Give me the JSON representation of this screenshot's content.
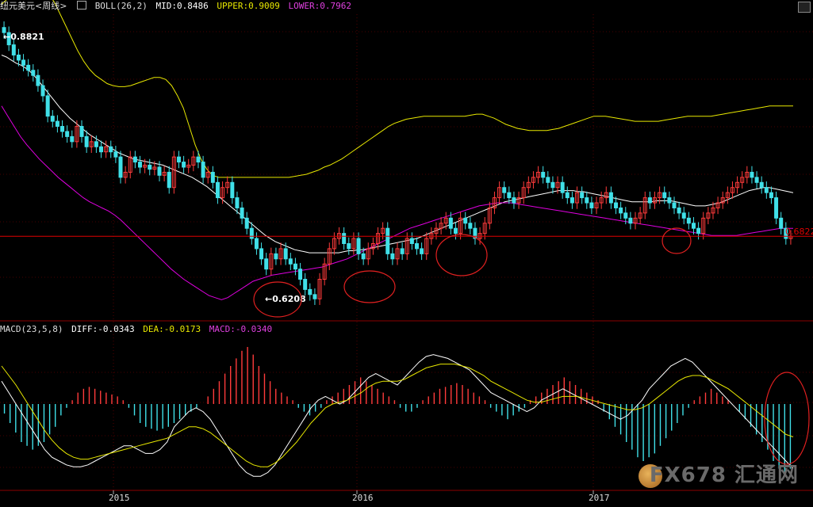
{
  "header": {
    "symbol": "纽元美元",
    "period": "<周线>",
    "indicator": "BOLL(26,2)",
    "mid": "MID:0.8486",
    "upper": "UPPER:0.9009",
    "lower": "LOWER:0.7962"
  },
  "macd_header": {
    "name": "MACD(23,5,8)",
    "diff": "DIFF:-0.0343",
    "dea": "DEA:-0.0173",
    "macd": "MACD:-0.0340"
  },
  "watermark": "FX678 汇通网",
  "colors": {
    "background": "#000000",
    "up_candle": "#ff3b3b",
    "down_candle": "#40e0e8",
    "mid_line": "#ffffff",
    "upper_band": "#e8e800",
    "lower_band": "#e000e0",
    "support_line": "#e00000",
    "annotation": "#e02020",
    "grid": "#8b0000"
  },
  "chart_data": [
    {
      "type": "candlestick",
      "title": "纽元美元 周线 BOLL(26,2)",
      "x_ticks": [
        "2015",
        "2016",
        "2017"
      ],
      "ylim": [
        0.6,
        0.9
      ],
      "annotations": [
        "0.8821",
        "0.6208",
        "0.6822"
      ],
      "support_level": 0.6822,
      "closes": [
        0.882,
        0.87,
        0.86,
        0.855,
        0.85,
        0.845,
        0.84,
        0.83,
        0.82,
        0.8,
        0.795,
        0.79,
        0.785,
        0.78,
        0.775,
        0.79,
        0.78,
        0.77,
        0.775,
        0.77,
        0.765,
        0.77,
        0.765,
        0.76,
        0.74,
        0.745,
        0.76,
        0.755,
        0.75,
        0.752,
        0.748,
        0.75,
        0.742,
        0.745,
        0.73,
        0.76,
        0.755,
        0.75,
        0.752,
        0.76,
        0.755,
        0.74,
        0.745,
        0.735,
        0.72,
        0.73,
        0.735,
        0.72,
        0.71,
        0.7,
        0.69,
        0.68,
        0.67,
        0.66,
        0.65,
        0.665,
        0.66,
        0.67,
        0.66,
        0.655,
        0.65,
        0.64,
        0.63,
        0.625,
        0.6208,
        0.64,
        0.655,
        0.67,
        0.68,
        0.685,
        0.675,
        0.67,
        0.68,
        0.665,
        0.66,
        0.67,
        0.675,
        0.685,
        0.69,
        0.665,
        0.66,
        0.67,
        0.665,
        0.68,
        0.675,
        0.67,
        0.665,
        0.68,
        0.685,
        0.69,
        0.695,
        0.7,
        0.69,
        0.685,
        0.7,
        0.695,
        0.69,
        0.68,
        0.685,
        0.695,
        0.71,
        0.72,
        0.73,
        0.725,
        0.72,
        0.715,
        0.72,
        0.73,
        0.735,
        0.74,
        0.745,
        0.74,
        0.735,
        0.73,
        0.735,
        0.725,
        0.72,
        0.715,
        0.725,
        0.72,
        0.715,
        0.71,
        0.715,
        0.72,
        0.725,
        0.715,
        0.71,
        0.705,
        0.7,
        0.695,
        0.7,
        0.705,
        0.72,
        0.715,
        0.72,
        0.725,
        0.72,
        0.715,
        0.71,
        0.705,
        0.7,
        0.695,
        0.69,
        0.685,
        0.7,
        0.705,
        0.71,
        0.715,
        0.72,
        0.725,
        0.73,
        0.735,
        0.74,
        0.745,
        0.74,
        0.735,
        0.73,
        0.725,
        0.72,
        0.7,
        0.69,
        0.68,
        0.6822
      ],
      "boll_mid": [
        0.86,
        0.858,
        0.855,
        0.852,
        0.85,
        0.847,
        0.843,
        0.838,
        0.832,
        0.826,
        0.82,
        0.814,
        0.808,
        0.803,
        0.798,
        0.794,
        0.79,
        0.786,
        0.782,
        0.779,
        0.776,
        0.773,
        0.77,
        0.767,
        0.764,
        0.762,
        0.76,
        0.758,
        0.757,
        0.756,
        0.755,
        0.754,
        0.753,
        0.752,
        0.75,
        0.748,
        0.746,
        0.744,
        0.742,
        0.74,
        0.737,
        0.734,
        0.731,
        0.727,
        0.723,
        0.719,
        0.715,
        0.711,
        0.707,
        0.703,
        0.699,
        0.695,
        0.691,
        0.687,
        0.683,
        0.68,
        0.677,
        0.675,
        0.673,
        0.671,
        0.669,
        0.668,
        0.667,
        0.666,
        0.666,
        0.666,
        0.666,
        0.666,
        0.666,
        0.666,
        0.667,
        0.668,
        0.668,
        0.669,
        0.669,
        0.67,
        0.671,
        0.672,
        0.673,
        0.674,
        0.675,
        0.676,
        0.677,
        0.678,
        0.679,
        0.68,
        0.682,
        0.684,
        0.686,
        0.688,
        0.69,
        0.692,
        0.694,
        0.696,
        0.698,
        0.7,
        0.702,
        0.704,
        0.706,
        0.708,
        0.71,
        0.712,
        0.714,
        0.716,
        0.717,
        0.718,
        0.719,
        0.72,
        0.721,
        0.722,
        0.723,
        0.724,
        0.725,
        0.726,
        0.727,
        0.727,
        0.727,
        0.727,
        0.726,
        0.726,
        0.725,
        0.724,
        0.723,
        0.722,
        0.721,
        0.72,
        0.719,
        0.718,
        0.717,
        0.716,
        0.716,
        0.716,
        0.716,
        0.716,
        0.717,
        0.717,
        0.717,
        0.717,
        0.716,
        0.715,
        0.714,
        0.713,
        0.712,
        0.712,
        0.712,
        0.713,
        0.714,
        0.715,
        0.717,
        0.719,
        0.721,
        0.723,
        0.725,
        0.727,
        0.728,
        0.729,
        0.73,
        0.73,
        0.729,
        0.728,
        0.727,
        0.726,
        0.725
      ],
      "boll_upper": [
        0.91,
        0.915,
        0.92,
        0.925,
        0.928,
        0.929,
        0.928,
        0.925,
        0.92,
        0.912,
        0.9,
        0.888,
        0.876,
        0.864,
        0.854,
        0.846,
        0.84,
        0.836,
        0.832,
        0.83,
        0.829,
        0.829,
        0.83,
        0.832,
        0.834,
        0.836,
        0.838,
        0.838,
        0.836,
        0.83,
        0.82,
        0.808,
        0.79,
        0.772,
        0.758,
        0.748,
        0.742,
        0.74,
        0.74,
        0.74,
        0.74,
        0.74,
        0.74,
        0.74,
        0.74,
        0.74,
        0.74,
        0.74,
        0.74,
        0.74,
        0.741,
        0.742,
        0.743,
        0.745,
        0.747,
        0.75,
        0.752,
        0.755,
        0.758,
        0.762,
        0.766,
        0.77,
        0.774,
        0.778,
        0.782,
        0.786,
        0.79,
        0.793,
        0.795,
        0.797,
        0.798,
        0.799,
        0.8,
        0.8,
        0.8,
        0.8,
        0.8,
        0.8,
        0.8,
        0.8,
        0.801,
        0.802,
        0.802,
        0.8,
        0.798,
        0.795,
        0.792,
        0.79,
        0.788,
        0.787,
        0.786,
        0.786,
        0.786,
        0.786,
        0.787,
        0.788,
        0.79,
        0.792,
        0.794,
        0.796,
        0.798,
        0.8,
        0.8,
        0.8,
        0.799,
        0.798,
        0.797,
        0.796,
        0.795,
        0.795,
        0.795,
        0.795,
        0.795,
        0.796,
        0.797,
        0.798,
        0.799,
        0.8,
        0.8,
        0.8,
        0.8,
        0.8,
        0.801,
        0.802,
        0.803,
        0.804,
        0.805,
        0.806,
        0.807,
        0.808,
        0.809,
        0.81,
        0.81,
        0.81,
        0.81,
        0.81
      ],
      "boll_lower": [
        0.81,
        0.8,
        0.79,
        0.78,
        0.772,
        0.765,
        0.758,
        0.752,
        0.746,
        0.74,
        0.735,
        0.73,
        0.725,
        0.72,
        0.716,
        0.713,
        0.71,
        0.707,
        0.703,
        0.698,
        0.692,
        0.686,
        0.68,
        0.674,
        0.668,
        0.662,
        0.656,
        0.65,
        0.645,
        0.64,
        0.636,
        0.632,
        0.628,
        0.624,
        0.622,
        0.62,
        0.622,
        0.626,
        0.63,
        0.634,
        0.638,
        0.64,
        0.642,
        0.644,
        0.645,
        0.646,
        0.647,
        0.648,
        0.649,
        0.65,
        0.651,
        0.652,
        0.654,
        0.656,
        0.658,
        0.66,
        0.663,
        0.666,
        0.669,
        0.672,
        0.675,
        0.678,
        0.681,
        0.684,
        0.687,
        0.69,
        0.692,
        0.694,
        0.696,
        0.698,
        0.7,
        0.702,
        0.704,
        0.706,
        0.708,
        0.71,
        0.712,
        0.713,
        0.714,
        0.715,
        0.715,
        0.715,
        0.714,
        0.713,
        0.712,
        0.711,
        0.71,
        0.709,
        0.708,
        0.707,
        0.706,
        0.705,
        0.704,
        0.703,
        0.702,
        0.701,
        0.7,
        0.699,
        0.698,
        0.697,
        0.696,
        0.695,
        0.694,
        0.693,
        0.692,
        0.691,
        0.69,
        0.689,
        0.688,
        0.687,
        0.686,
        0.685,
        0.684,
        0.683,
        0.683,
        0.683,
        0.683,
        0.683,
        0.684,
        0.685,
        0.686,
        0.687,
        0.688,
        0.689,
        0.69,
        0.69,
        0.69
      ]
    },
    {
      "type": "bar",
      "title": "MACD(23,5,8)",
      "x_ticks": [
        "2015",
        "2016",
        "2017"
      ],
      "ylim": [
        -0.045,
        0.035
      ],
      "macd": [
        -0.005,
        -0.01,
        -0.015,
        -0.02,
        -0.022,
        -0.024,
        -0.022,
        -0.02,
        -0.016,
        -0.012,
        -0.006,
        -0.002,
        0.002,
        0.006,
        0.008,
        0.009,
        0.008,
        0.007,
        0.006,
        0.005,
        0.004,
        0.002,
        -0.002,
        -0.006,
        -0.01,
        -0.012,
        -0.013,
        -0.014,
        -0.013,
        -0.012,
        -0.01,
        -0.008,
        -0.006,
        -0.004,
        -0.002,
        0,
        0.004,
        0.008,
        0.012,
        0.016,
        0.02,
        0.024,
        0.028,
        0.03,
        0.026,
        0.02,
        0.016,
        0.012,
        0.008,
        0.006,
        0.004,
        0.002,
        -0.002,
        -0.004,
        -0.006,
        -0.004,
        -0.002,
        0.002,
        0.004,
        0.006,
        0.008,
        0.01,
        0.012,
        0.014,
        0.012,
        0.01,
        0.008,
        0.006,
        0.004,
        0.002,
        -0.002,
        -0.004,
        -0.004,
        -0.002,
        0.002,
        0.004,
        0.006,
        0.008,
        0.009,
        0.01,
        0.011,
        0.01,
        0.008,
        0.006,
        0.004,
        0.002,
        -0.002,
        -0.004,
        -0.006,
        -0.008,
        -0.006,
        -0.004,
        -0.002,
        0.002,
        0.004,
        0.006,
        0.008,
        0.01,
        0.012,
        0.014,
        0.012,
        0.01,
        0.008,
        0.006,
        0.004,
        0.002,
        -0.004,
        -0.008,
        -0.012,
        -0.016,
        -0.02,
        -0.024,
        -0.028,
        -0.03,
        -0.028,
        -0.026,
        -0.022,
        -0.018,
        -0.014,
        -0.01,
        -0.006,
        -0.002,
        0.002,
        0.004,
        0.006,
        0.008,
        0.006,
        0.004,
        0.002,
        0,
        -0.004,
        -0.008,
        -0.012,
        -0.016,
        -0.02,
        -0.024,
        -0.03,
        -0.034,
        -0.036,
        -0.034
      ],
      "diff": [
        0.012,
        0.006,
        0,
        -0.006,
        -0.012,
        -0.018,
        -0.024,
        -0.028,
        -0.03,
        -0.032,
        -0.033,
        -0.033,
        -0.032,
        -0.03,
        -0.028,
        -0.026,
        -0.024,
        -0.022,
        -0.022,
        -0.024,
        -0.026,
        -0.026,
        -0.024,
        -0.02,
        -0.012,
        -0.008,
        -0.004,
        -0.002,
        -0.004,
        -0.008,
        -0.014,
        -0.02,
        -0.026,
        -0.032,
        -0.036,
        -0.038,
        -0.038,
        -0.036,
        -0.032,
        -0.026,
        -0.02,
        -0.014,
        -0.008,
        -0.002,
        0.002,
        0.004,
        0.002,
        0,
        0.002,
        0.006,
        0.01,
        0.014,
        0.016,
        0.014,
        0.012,
        0.01,
        0.014,
        0.018,
        0.022,
        0.025,
        0.026,
        0.025,
        0.024,
        0.022,
        0.02,
        0.018,
        0.014,
        0.01,
        0.006,
        0.004,
        0.002,
        0,
        -0.002,
        -0.004,
        -0.002,
        0.002,
        0.004,
        0.006,
        0.008,
        0.006,
        0.004,
        0.002,
        0,
        -0.002,
        -0.004,
        -0.006,
        -0.008,
        -0.006,
        -0.002,
        0.002,
        0.008,
        0.012,
        0.016,
        0.02,
        0.022,
        0.024,
        0.022,
        0.018,
        0.014,
        0.01,
        0.006,
        0.002,
        -0.002,
        -0.006,
        -0.01,
        -0.014,
        -0.018,
        -0.022,
        -0.026,
        -0.03,
        -0.034
      ],
      "dea": [
        0.02,
        0.015,
        0.01,
        0.004,
        -0.002,
        -0.008,
        -0.014,
        -0.019,
        -0.023,
        -0.026,
        -0.028,
        -0.029,
        -0.029,
        -0.028,
        -0.027,
        -0.026,
        -0.025,
        -0.024,
        -0.023,
        -0.022,
        -0.021,
        -0.02,
        -0.019,
        -0.018,
        -0.016,
        -0.014,
        -0.012,
        -0.012,
        -0.013,
        -0.015,
        -0.018,
        -0.021,
        -0.024,
        -0.027,
        -0.03,
        -0.032,
        -0.033,
        -0.033,
        -0.031,
        -0.028,
        -0.024,
        -0.02,
        -0.015,
        -0.01,
        -0.006,
        -0.002,
        0,
        0.001,
        0.002,
        0.004,
        0.006,
        0.009,
        0.011,
        0.012,
        0.012,
        0.012,
        0.013,
        0.015,
        0.017,
        0.019,
        0.02,
        0.021,
        0.021,
        0.021,
        0.02,
        0.019,
        0.017,
        0.015,
        0.012,
        0.01,
        0.008,
        0.006,
        0.004,
        0.002,
        0.001,
        0.001,
        0.002,
        0.003,
        0.004,
        0.004,
        0.004,
        0.003,
        0.002,
        0.001,
        0,
        -0.001,
        -0.002,
        -0.003,
        -0.003,
        -0.002,
        0,
        0.003,
        0.006,
        0.009,
        0.012,
        0.014,
        0.015,
        0.015,
        0.014,
        0.012,
        0.01,
        0.008,
        0.005,
        0.002,
        -0.001,
        -0.004,
        -0.007,
        -0.01,
        -0.013,
        -0.016,
        -0.0173
      ]
    }
  ]
}
